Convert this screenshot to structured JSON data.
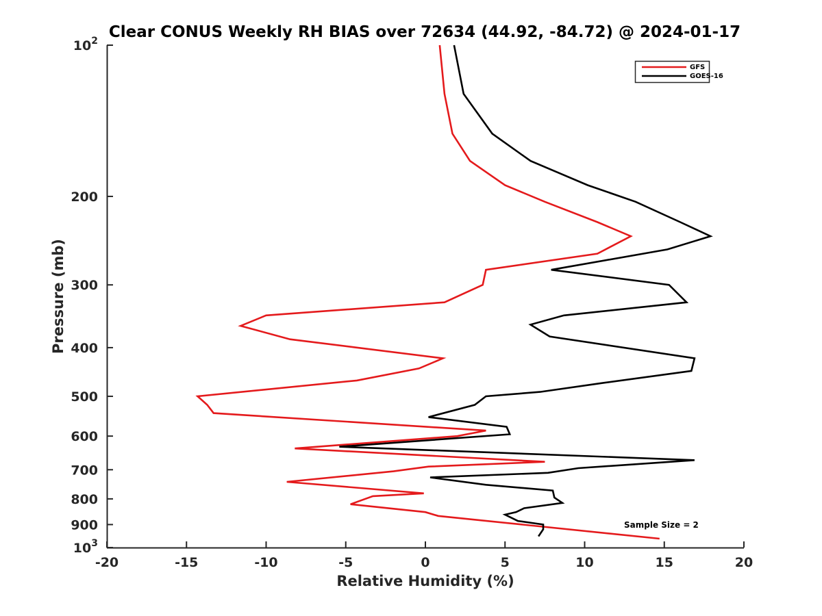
{
  "chart_data": {
    "type": "line",
    "title": "Clear CONUS Weekly RH BIAS over 72634 (44.92, -84.72) @ 2024-01-17",
    "xlabel": "Relative Humidity (%)",
    "ylabel": "Pressure (mb)",
    "xlim": [
      -20,
      20
    ],
    "ylim": [
      100,
      1000
    ],
    "yscale": "log",
    "y_reversed": true,
    "grid": false,
    "legend_position": "top-right",
    "x_ticks": [
      -20,
      -15,
      -10,
      -5,
      0,
      5,
      10,
      15,
      20
    ],
    "x_tick_labels": [
      "-20",
      "-15",
      "-10",
      "-5",
      "0",
      "5",
      "10",
      "15",
      "20"
    ],
    "y_ticks": [
      100,
      200,
      300,
      400,
      500,
      600,
      700,
      800,
      900,
      1000
    ],
    "y_tick_labels": [
      {
        "base": "10",
        "exp": "2"
      },
      {
        "base": "200",
        "exp": ""
      },
      {
        "base": "300",
        "exp": ""
      },
      {
        "base": "400",
        "exp": ""
      },
      {
        "base": "500",
        "exp": ""
      },
      {
        "base": "600",
        "exp": ""
      },
      {
        "base": "700",
        "exp": ""
      },
      {
        "base": "800",
        "exp": ""
      },
      {
        "base": "900",
        "exp": ""
      },
      {
        "base": "10",
        "exp": "3"
      }
    ],
    "annotation": "Sample Size = 2",
    "series": [
      {
        "name": "GFS",
        "color": "#e41a1c",
        "x": [
          0.9,
          1.2,
          1.7,
          2.8,
          5.0,
          7.5,
          10.8,
          12.9,
          10.8,
          3.8,
          3.6,
          1.2,
          -10.0,
          -11.6,
          -8.5,
          1.1,
          -0.4,
          -4.3,
          -14.3,
          -13.7,
          -13.3,
          3.8,
          2.0,
          -8.2,
          7.5,
          0.2,
          -2.0,
          -8.7,
          -0.1,
          -3.3,
          -4.7,
          0.0,
          0.8,
          14.7
        ],
        "y": [
          100,
          125,
          150,
          170,
          190,
          205,
          225,
          240,
          260,
          280,
          300,
          325,
          345,
          362,
          385,
          420,
          440,
          465,
          500,
          520,
          540,
          585,
          600,
          635,
          675,
          690,
          705,
          740,
          780,
          790,
          820,
          850,
          865,
          960
        ]
      },
      {
        "name": "GOES-16",
        "color": "#000000",
        "x": [
          1.8,
          2.4,
          4.2,
          6.6,
          10.2,
          13.2,
          16.0,
          17.9,
          15.2,
          7.9,
          15.3,
          16.4,
          8.7,
          6.6,
          7.8,
          16.9,
          16.7,
          11.2,
          7.2,
          3.8,
          3.1,
          0.2,
          5.1,
          5.3,
          -5.4,
          16.9,
          9.6,
          7.7,
          0.3,
          3.8,
          8.0,
          8.1,
          8.6,
          6.2,
          5.7,
          5.0,
          5.8,
          7.4,
          7.4,
          7.1
        ],
        "y": [
          100,
          125,
          150,
          170,
          190,
          205,
          225,
          240,
          255,
          280,
          300,
          325,
          345,
          360,
          380,
          420,
          445,
          470,
          490,
          500,
          520,
          550,
          575,
          595,
          630,
          670,
          695,
          710,
          725,
          750,
          770,
          795,
          815,
          835,
          850,
          860,
          885,
          900,
          920,
          950
        ]
      }
    ]
  }
}
